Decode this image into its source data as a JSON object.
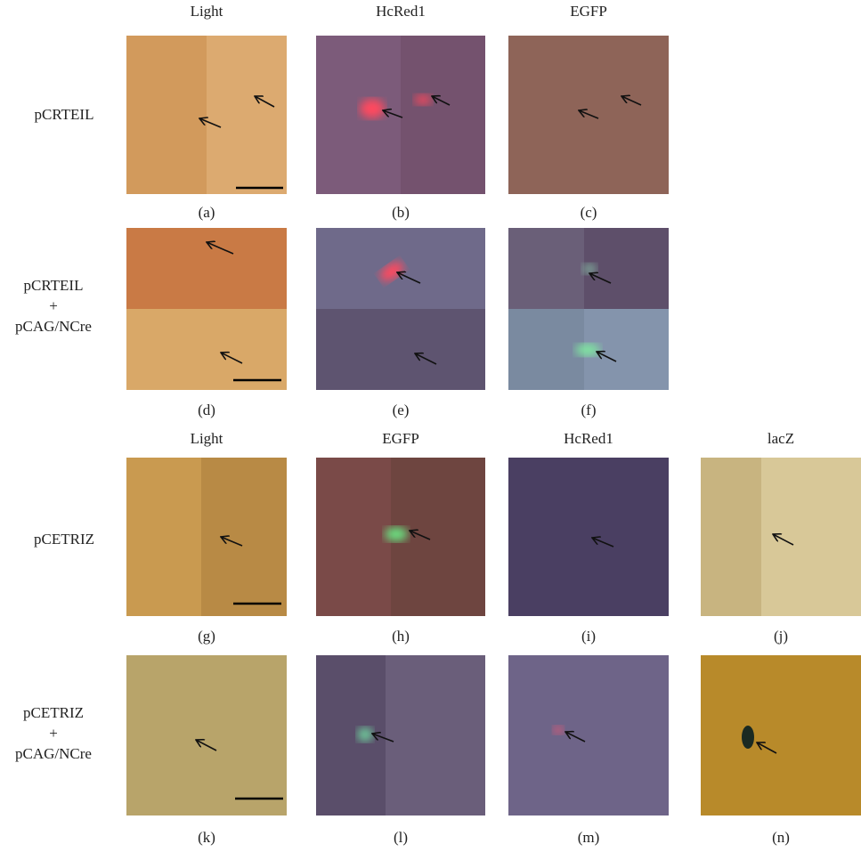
{
  "column_headers_top": [
    "Light",
    "HcRed1",
    "EGFP"
  ],
  "column_headers_bottom": [
    "Light",
    "EGFP",
    "HcRed1",
    "lacZ"
  ],
  "row_labels": [
    [
      "pCRTEIL"
    ],
    [
      "pCRTEIL",
      "+",
      "pCAG/NCre"
    ],
    [
      "pCETRIZ"
    ],
    [
      "pCETRIZ",
      "+",
      "pCAG/NCre"
    ]
  ],
  "panel_labels": [
    "(a)",
    "(b)",
    "(c)",
    "(d)",
    "(e)",
    "(f)",
    "(g)",
    "(h)",
    "(i)",
    "(j)",
    "(k)",
    "(l)",
    "(m)",
    "(n)"
  ]
}
